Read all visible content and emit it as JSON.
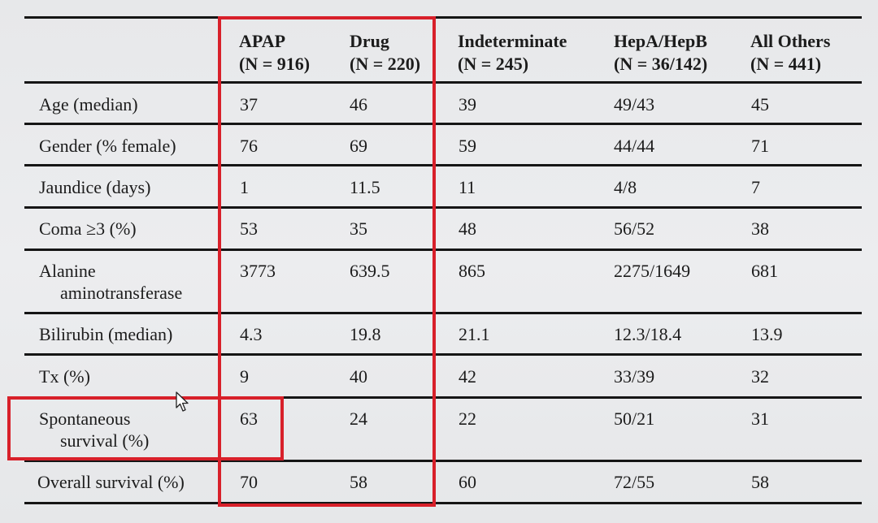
{
  "table": {
    "columns": [
      {
        "line1": "APAP",
        "line2": "(N = 916)"
      },
      {
        "line1": "Drug",
        "line2": "(N = 220)"
      },
      {
        "line1": "Indeterminate",
        "line2": "(N = 245)"
      },
      {
        "line1": "HepA/HepB",
        "line2": "(N = 36/142)"
      },
      {
        "line1": "All Others",
        "line2": "(N = 441)"
      }
    ],
    "rows": [
      {
        "label": "Age (median)",
        "values": [
          "37",
          "46",
          "39",
          "49/43",
          "45"
        ]
      },
      {
        "label": "Gender (% female)",
        "values": [
          "76",
          "69",
          "59",
          "44/44",
          "71"
        ]
      },
      {
        "label": "Jaundice (days)",
        "values": [
          "1",
          "11.5",
          "11",
          "4/8",
          "7"
        ]
      },
      {
        "label": "Coma ≥3 (%)",
        "values": [
          "53",
          "35",
          "48",
          "56/52",
          "38"
        ]
      },
      {
        "label_line1": "Alanine",
        "label_line2": "aminotransferase",
        "values": [
          "3773",
          "639.5",
          "865",
          "2275/1649",
          "681"
        ]
      },
      {
        "label": "Bilirubin (median)",
        "values": [
          "4.3",
          "19.8",
          "21.1",
          "12.3/18.4",
          "13.9"
        ]
      },
      {
        "label": "Tx (%)",
        "values": [
          "9",
          "40",
          "42",
          "33/39",
          "32"
        ]
      },
      {
        "label_line1": "Spontaneous",
        "label_line2": "survival (%)",
        "values": [
          "63",
          "24",
          "22",
          "50/21",
          "31"
        ]
      },
      {
        "label": "Overall survival (%)",
        "values": [
          "70",
          "58",
          "60",
          "72/55",
          "58"
        ]
      }
    ]
  },
  "highlight_color": "#d8202a"
}
